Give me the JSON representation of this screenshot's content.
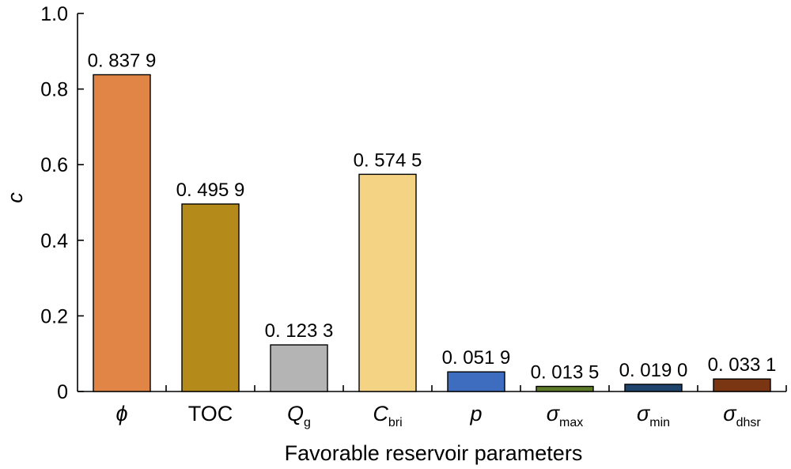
{
  "chart_data": {
    "type": "bar",
    "title": "",
    "xlabel": "Favorable reservoir parameters",
    "ylabel": "c",
    "ylim": [
      0,
      1.0
    ],
    "yticks": [
      0,
      0.2,
      0.4,
      0.6,
      0.8,
      1.0
    ],
    "ytick_labels": [
      "0",
      "0.2",
      "0.4",
      "0.6",
      "0.8",
      "1.0"
    ],
    "grid": false,
    "categories": [
      {
        "main": "ϕ",
        "sub": "",
        "italic": true
      },
      {
        "main": "TOC",
        "sub": "",
        "italic": false
      },
      {
        "main": "Q",
        "sub": "g",
        "italic": true
      },
      {
        "main": "C",
        "sub": "bri",
        "italic": true
      },
      {
        "main": "p",
        "sub": "",
        "italic": true
      },
      {
        "main": "σ",
        "sub": "max",
        "italic": true
      },
      {
        "main": "σ",
        "sub": "min",
        "italic": true
      },
      {
        "main": "σ",
        "sub": "dhsr",
        "italic": true
      }
    ],
    "values": [
      0.8379,
      0.4959,
      0.1233,
      0.5745,
      0.0519,
      0.0135,
      0.019,
      0.0331
    ],
    "value_labels": [
      "0. 837 9",
      "0. 495 9",
      "0. 123 3",
      "0. 574 5",
      "0. 051 9",
      "0. 013 5",
      "0. 019 0",
      "0. 033 1"
    ],
    "colors": [
      "#E08545",
      "#B48A1A",
      "#B4B4B4",
      "#F4D384",
      "#3E6DBF",
      "#5C7A28",
      "#1F446C",
      "#7A3512"
    ]
  }
}
